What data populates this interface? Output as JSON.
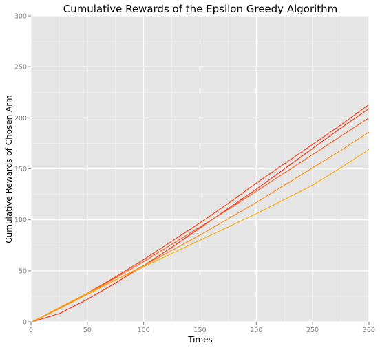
{
  "chart_data": {
    "type": "line",
    "title": "Cumulative Rewards of the Epsilon Greedy Algorithm",
    "xlabel": "Times",
    "ylabel": "Cumulative Rewards of Chosen Arm",
    "xlim": [
      0,
      300
    ],
    "ylim": [
      0,
      300
    ],
    "xticks": [
      0,
      50,
      100,
      150,
      200,
      250,
      300
    ],
    "yticks": [
      0,
      50,
      100,
      150,
      200,
      250,
      300
    ],
    "xtick_labels": [
      "0",
      "50",
      "100",
      "150",
      "200",
      "250",
      "300"
    ],
    "ytick_labels": [
      "0",
      "50",
      "100",
      "150",
      "200",
      "250",
      "300"
    ],
    "grid": true,
    "legend": "none",
    "background_color": "#e5e5e5",
    "grid_color": "#ffffff",
    "series": [
      {
        "color": "#ff2200",
        "x": [
          1,
          25,
          50,
          75,
          100,
          125,
          150,
          175,
          200,
          225,
          250,
          275,
          300
        ],
        "y": [
          0,
          8,
          22,
          38,
          55,
          73,
          92,
          111,
          130,
          150,
          170,
          190,
          209
        ]
      },
      {
        "color": "#ff3300",
        "x": [
          1,
          25,
          50,
          75,
          100,
          125,
          150,
          175,
          200,
          225,
          250,
          275,
          300
        ],
        "y": [
          0,
          13,
          28,
          44,
          61,
          79,
          97,
          116,
          136,
          155,
          174,
          193,
          213
        ]
      },
      {
        "color": "#ff5511",
        "x": [
          1,
          25,
          50,
          75,
          100,
          125,
          150,
          175,
          200,
          225,
          250,
          275,
          300
        ],
        "y": [
          0,
          13,
          28,
          43,
          59,
          76,
          93,
          110,
          128,
          146,
          164,
          182,
          200
        ]
      },
      {
        "color": "#ff8800",
        "x": [
          1,
          25,
          50,
          75,
          100,
          125,
          150,
          175,
          200,
          225,
          250,
          275,
          300
        ],
        "y": [
          0,
          13,
          27,
          41,
          55,
          70,
          85,
          101,
          117,
          134,
          151,
          168,
          186
        ]
      },
      {
        "color": "#ffaa00",
        "x": [
          1,
          25,
          50,
          75,
          100,
          125,
          150,
          175,
          200,
          225,
          250,
          275,
          300
        ],
        "y": [
          0,
          14,
          28,
          41,
          54,
          67,
          80,
          93,
          106,
          120,
          134,
          151,
          169
        ]
      }
    ]
  }
}
